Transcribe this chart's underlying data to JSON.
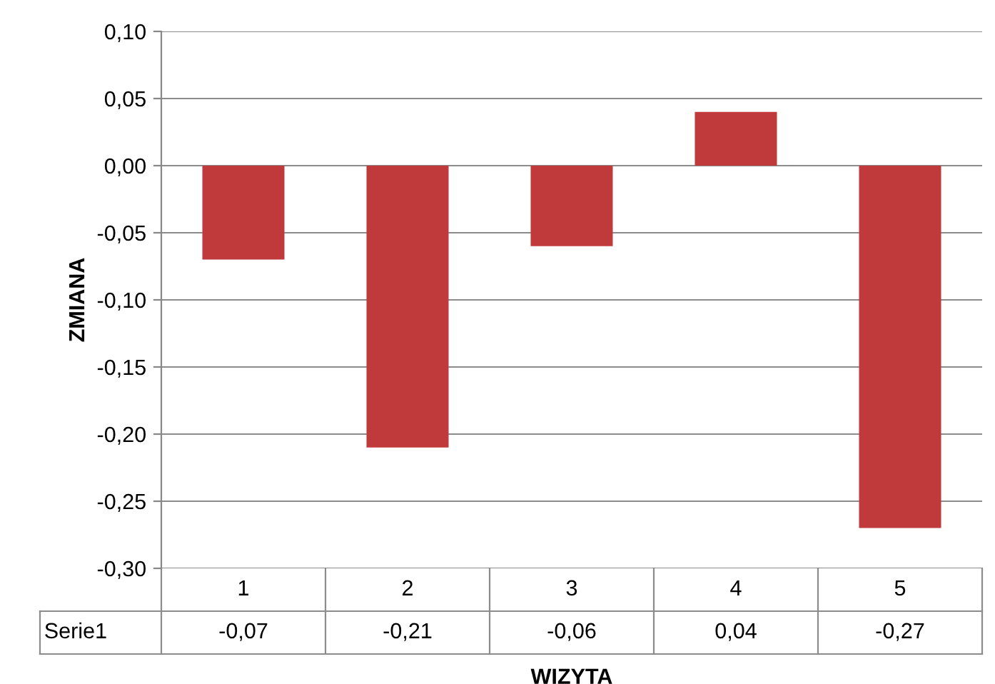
{
  "chart_data": {
    "type": "bar",
    "xlabel": "WIZYTA",
    "ylabel": "ZMIANA",
    "categories": [
      "1",
      "2",
      "3",
      "4",
      "5"
    ],
    "series": [
      {
        "name": "Serie1",
        "color": "#c0393b",
        "values": [
          -0.07,
          -0.21,
          -0.06,
          0.04,
          -0.27
        ],
        "value_labels": [
          "-0,07",
          "-0,21",
          "-0,06",
          "0,04",
          "-0,27"
        ]
      }
    ],
    "ylim": [
      -0.3,
      0.1
    ],
    "yticks": [
      {
        "value": -0.3,
        "label": "-0,30"
      },
      {
        "value": -0.25,
        "label": "-0,25"
      },
      {
        "value": -0.2,
        "label": "-0,20"
      },
      {
        "value": -0.15,
        "label": "-0,15"
      },
      {
        "value": -0.1,
        "label": "-0,10"
      },
      {
        "value": -0.05,
        "label": "-0,05"
      },
      {
        "value": 0,
        "label": "0,00"
      },
      {
        "value": 0.05,
        "label": "0,05"
      },
      {
        "value": 0.1,
        "label": "0,10"
      }
    ],
    "grid": "y",
    "legend": false
  }
}
